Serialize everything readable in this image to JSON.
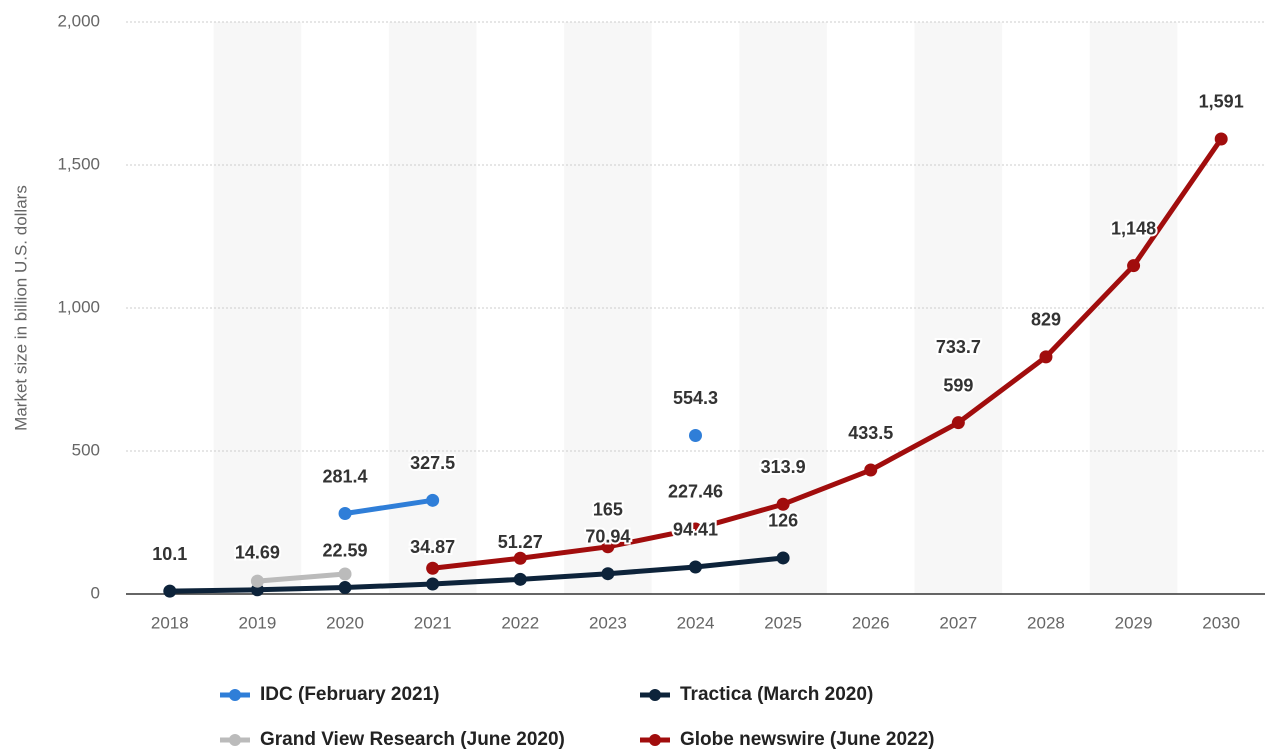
{
  "chart_data": {
    "type": "line",
    "y_label": "Market size in billion U.S. dollars",
    "categories": [
      "2018",
      "2019",
      "2020",
      "2021",
      "2022",
      "2023",
      "2024",
      "2025",
      "2026",
      "2027",
      "2028",
      "2029",
      "2030"
    ],
    "ylim": [
      0,
      2000
    ],
    "yticks": [
      0,
      500,
      {
        "value": 1000,
        "label": "1,000"
      },
      {
        "value": 1500,
        "label": "1,500"
      },
      {
        "value": 2000,
        "label": "2,000"
      }
    ],
    "grid": true,
    "series": [
      {
        "name": "IDC (February 2021)",
        "color": "#2f7ed8",
        "values": [
          null,
          null,
          281.4,
          327.5,
          null,
          null,
          554.3,
          null,
          null,
          null,
          null,
          null,
          null
        ],
        "value_labels": [
          null,
          null,
          "281.4",
          "327.5",
          null,
          null,
          "554.3",
          null,
          null,
          null,
          null,
          null,
          null
        ]
      },
      {
        "name": "Tractica (March 2020)",
        "color": "#0d233a",
        "values": [
          10.1,
          14.69,
          22.59,
          34.87,
          51.27,
          70.94,
          94.41,
          126,
          null,
          null,
          null,
          null,
          null
        ],
        "value_labels": [
          "10.1",
          "14.69",
          "22.59",
          "34.87",
          "51.27",
          "70.94",
          "94.41",
          "126",
          null,
          null,
          null,
          null,
          null
        ]
      },
      {
        "name": "Grand View Research (June 2020)",
        "color": "#bbbbbb",
        "values": [
          null,
          45,
          70,
          null,
          null,
          null,
          null,
          null,
          null,
          733.7,
          null,
          null,
          null
        ],
        "value_labels": [
          null,
          null,
          null,
          null,
          null,
          null,
          null,
          null,
          null,
          "733.7",
          null,
          null,
          null
        ]
      },
      {
        "name": "Globe newswire (June 2022)",
        "color": "#a10d0d",
        "values": [
          null,
          null,
          null,
          90,
          125,
          165,
          227.46,
          313.9,
          433.5,
          599,
          829,
          1148,
          1591
        ],
        "value_labels": [
          null,
          null,
          null,
          null,
          null,
          "165",
          "227.46",
          "313.9",
          "433.5",
          "599",
          "829",
          "1,148",
          "1,591"
        ]
      }
    ]
  }
}
